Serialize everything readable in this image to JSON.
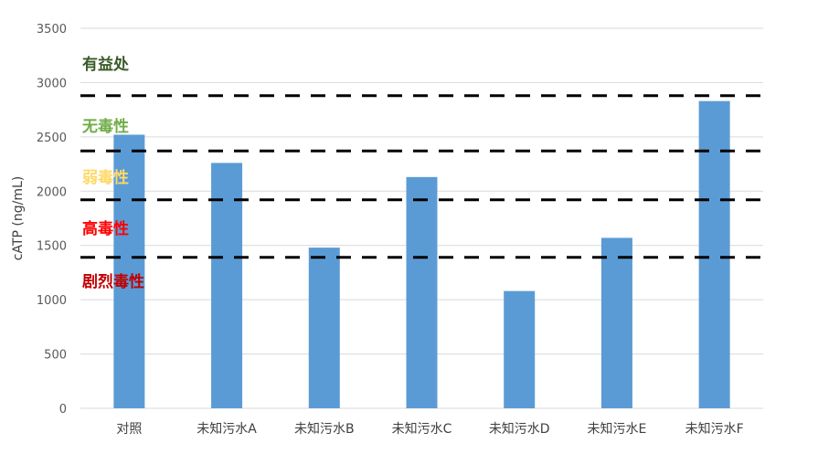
{
  "chart_data": {
    "type": "bar",
    "title": "",
    "xlabel": "",
    "ylabel": "cATP (ng/mL)",
    "ylim": [
      0,
      3500
    ],
    "yticks": [
      0,
      500,
      1000,
      1500,
      2000,
      2500,
      3000,
      3500
    ],
    "grid": true,
    "legend": "none",
    "categories": [
      "对照",
      "未知污水A",
      "未知污水B",
      "未知污水C",
      "未知污水D",
      "未知污水E",
      "未知污水F"
    ],
    "values": [
      2520,
      2260,
      1480,
      2130,
      1080,
      1570,
      2830
    ],
    "bar_color": "#5b9bd5",
    "threshold_lines": [
      2880,
      2370,
      1920,
      1390
    ],
    "threshold_style": "dashed black",
    "zones": [
      {
        "label": "有益处",
        "color": "#3a5a28"
      },
      {
        "label": "无毒性",
        "color": "#70ad47"
      },
      {
        "label": "弱毒性",
        "color": "#ffd966"
      },
      {
        "label": "高毒性",
        "color": "#ff0000"
      },
      {
        "label": "剧烈毒性",
        "color": "#c00000"
      }
    ]
  }
}
